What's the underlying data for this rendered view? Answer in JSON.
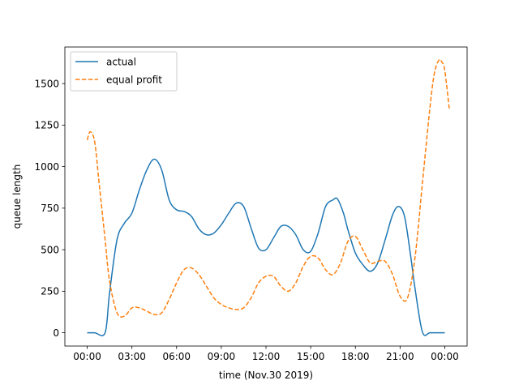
{
  "chart_data": {
    "type": "line",
    "xlabel": "time (Nov.30 2019)",
    "ylabel": "queue length",
    "x_unit": "hours",
    "xlim": [
      -1.5,
      25.5
    ],
    "ylim": [
      -80,
      1720
    ],
    "xticks": [
      0,
      3,
      6,
      9,
      12,
      15,
      18,
      21,
      24
    ],
    "xtick_labels": [
      "00:00",
      "03:00",
      "06:00",
      "09:00",
      "12:00",
      "15:00",
      "18:00",
      "21:00",
      "00:00"
    ],
    "yticks": [
      0,
      250,
      500,
      750,
      1000,
      1250,
      1500
    ],
    "ytick_labels": [
      "0",
      "250",
      "500",
      "750",
      "1000",
      "1250",
      "1500"
    ],
    "grid": false,
    "legend_position": "upper-left",
    "series": [
      {
        "name": "actual",
        "color": "#1f77b4",
        "dash": "solid",
        "x": [
          0,
          0.5,
          1.2,
          1.5,
          2,
          2.5,
          3,
          3.5,
          4,
          4.5,
          5,
          5.5,
          6,
          6.5,
          7,
          7.5,
          8,
          8.5,
          9,
          9.5,
          10,
          10.5,
          11,
          11.5,
          12,
          12.5,
          13,
          13.5,
          14,
          14.5,
          15,
          15.5,
          16,
          16.5,
          16.8,
          17.2,
          17.5,
          18,
          18.5,
          19,
          19.5,
          20,
          20.5,
          20.9,
          21.3,
          21.7,
          22,
          22.5,
          23,
          23.5,
          24
        ],
        "y": [
          0,
          0,
          0,
          240,
          560,
          660,
          720,
          860,
          980,
          1045,
          980,
          800,
          740,
          730,
          700,
          625,
          590,
          600,
          650,
          720,
          780,
          760,
          630,
          510,
          500,
          570,
          640,
          640,
          590,
          500,
          490,
          600,
          760,
          800,
          805,
          720,
          620,
          480,
          410,
          370,
          420,
          560,
          710,
          760,
          700,
          470,
          270,
          5,
          0,
          0,
          0
        ]
      },
      {
        "name": "equal profit",
        "color": "#ff7f0e",
        "dash": "dashed",
        "x": [
          0,
          0.2,
          0.5,
          0.8,
          1.2,
          1.5,
          2,
          2.5,
          3,
          3.5,
          4,
          4.5,
          5,
          5.5,
          6,
          6.5,
          7,
          7.5,
          8,
          8.5,
          9,
          9.5,
          10,
          10.5,
          11,
          11.5,
          12,
          12.5,
          13,
          13.5,
          14,
          14.5,
          15,
          15.5,
          16,
          16.5,
          17,
          17.5,
          18,
          18.5,
          19,
          19.5,
          20,
          20.5,
          21,
          21.5,
          22,
          22.5,
          23,
          23.3,
          23.6,
          23.8,
          24,
          24.3
        ],
        "y": [
          1160,
          1210,
          1150,
          900,
          560,
          310,
          120,
          100,
          150,
          150,
          130,
          110,
          120,
          200,
          300,
          380,
          390,
          350,
          280,
          210,
          170,
          150,
          140,
          150,
          210,
          300,
          340,
          340,
          280,
          250,
          300,
          400,
          460,
          450,
          380,
          350,
          420,
          550,
          580,
          500,
          420,
          430,
          430,
          350,
          220,
          210,
          450,
          900,
          1350,
          1560,
          1640,
          1630,
          1580,
          1350
        ]
      }
    ]
  }
}
